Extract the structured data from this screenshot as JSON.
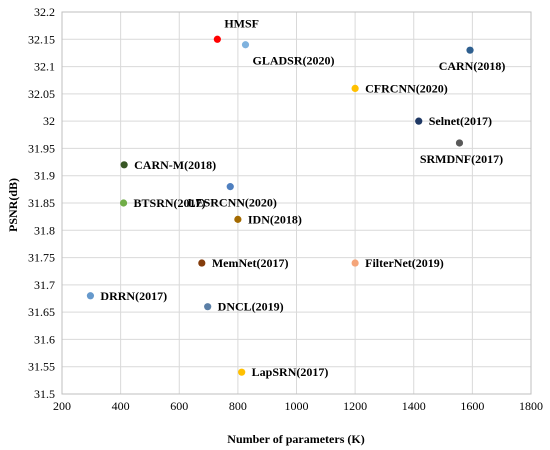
{
  "chart_data": {
    "type": "scatter",
    "title": "",
    "xlabel": "Number of parameters (K)",
    "ylabel": "PSNR(dB)",
    "xlim": [
      200,
      1800
    ],
    "ylim": [
      31.5,
      32.2
    ],
    "x_ticks": [
      200,
      400,
      600,
      800,
      1000,
      1200,
      1400,
      1600,
      1800
    ],
    "y_ticks": [
      31.5,
      31.55,
      31.6,
      31.65,
      31.7,
      31.75,
      31.8,
      31.85,
      31.9,
      31.95,
      32,
      32.05,
      32.1,
      32.15,
      32.2
    ],
    "x_tick_labels": [
      "200",
      "400",
      "600",
      "800",
      "1000",
      "1200",
      "1400",
      "1600",
      "1800"
    ],
    "y_tick_labels": [
      "31.5",
      "31.55",
      "31.6",
      "31.65",
      "31.7",
      "31.75",
      "31.8",
      "31.85",
      "31.9",
      "31.95",
      "32",
      "32.05",
      "32.1",
      "32.15",
      "32.2"
    ],
    "grid": true,
    "legend": "none",
    "points": [
      {
        "label": "HMSF",
        "x": 730,
        "y": 32.15,
        "color": "#ff0000",
        "label_pos": "above-right"
      },
      {
        "label": "GLADSR(2020)",
        "x": 826,
        "y": 32.14,
        "color": "#7fb2de",
        "label_pos": "below-right"
      },
      {
        "label": "CARN(2018)",
        "x": 1592,
        "y": 32.13,
        "color": "#2e5f8f",
        "label_pos": "below-left"
      },
      {
        "label": "CFRCNN(2020)",
        "x": 1200,
        "y": 32.06,
        "color": "#ffc000",
        "label_pos": "right"
      },
      {
        "label": "Selnet(2017)",
        "x": 1417,
        "y": 32.0,
        "color": "#1f3864",
        "label_pos": "right"
      },
      {
        "label": "SRMDNF(2017)",
        "x": 1556,
        "y": 31.96,
        "color": "#595959",
        "label_pos": "below-center"
      },
      {
        "label": "CARN-M(2018)",
        "x": 412,
        "y": 31.92,
        "color": "#375623",
        "label_pos": "right"
      },
      {
        "label": "LESRCNN(2020)",
        "x": 774,
        "y": 31.88,
        "color": "#4f7fbf",
        "label_pos": "below-center"
      },
      {
        "label": "BTSRN(2017)",
        "x": 410,
        "y": 31.85,
        "color": "#70ad47",
        "label_pos": "right"
      },
      {
        "label": "IDN(2018)",
        "x": 800,
        "y": 31.82,
        "color": "#a36a00",
        "label_pos": "right"
      },
      {
        "label": "MemNet(2017)",
        "x": 677,
        "y": 31.74,
        "color": "#843c0c",
        "label_pos": "right"
      },
      {
        "label": "FilterNet(2019)",
        "x": 1200,
        "y": 31.74,
        "color": "#f4a57a",
        "label_pos": "right"
      },
      {
        "label": "DRRN(2017)",
        "x": 297,
        "y": 31.68,
        "color": "#6699cc",
        "label_pos": "right"
      },
      {
        "label": "DNCL(2019)",
        "x": 697,
        "y": 31.66,
        "color": "#5b7fa6",
        "label_pos": "right"
      },
      {
        "label": "LapSRN(2017)",
        "x": 813,
        "y": 31.54,
        "color": "#ffc000",
        "label_pos": "right"
      }
    ]
  }
}
